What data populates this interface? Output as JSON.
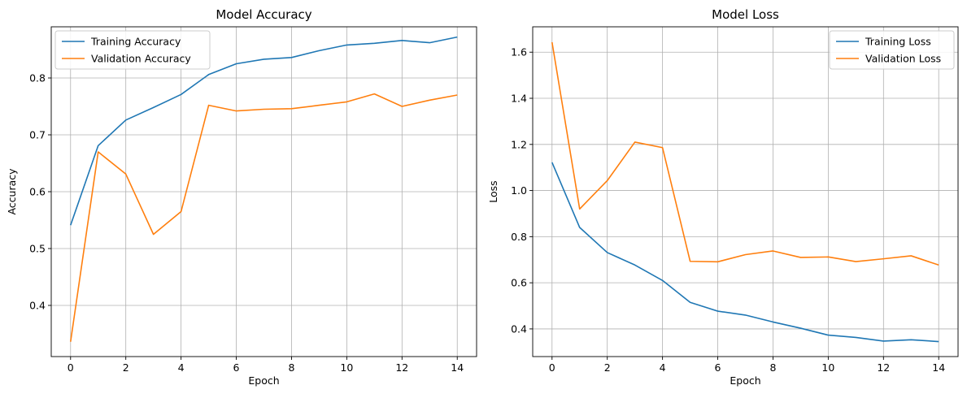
{
  "chart_data": [
    {
      "type": "line",
      "title": "Model Accuracy",
      "xlabel": "Epoch",
      "ylabel": "Accuracy",
      "x": [
        0,
        1,
        2,
        3,
        4,
        5,
        6,
        7,
        8,
        9,
        10,
        11,
        12,
        13,
        14
      ],
      "xlim": [
        -0.7,
        14.7
      ],
      "ylim": [
        0.31,
        0.89
      ],
      "xticks": [
        0,
        2,
        4,
        6,
        8,
        10,
        12,
        14
      ],
      "xtick_labels": [
        "0",
        "2",
        "4",
        "6",
        "8",
        "10",
        "12",
        "14"
      ],
      "yticks": [
        0.4,
        0.5,
        0.6,
        0.7,
        0.8
      ],
      "ytick_labels": [
        "0.4",
        "0.5",
        "0.6",
        "0.7",
        "0.8"
      ],
      "grid": true,
      "legend_position": "top-left",
      "series": [
        {
          "name": "Training Accuracy",
          "color": "#1f77b4",
          "values": [
            0.541,
            0.681,
            0.726,
            0.748,
            0.771,
            0.806,
            0.825,
            0.833,
            0.836,
            0.848,
            0.858,
            0.861,
            0.866,
            0.862,
            0.872
          ]
        },
        {
          "name": "Validation Accuracy",
          "color": "#ff7f0e",
          "values": [
            0.336,
            0.67,
            0.631,
            0.525,
            0.565,
            0.752,
            0.742,
            0.745,
            0.746,
            0.752,
            0.758,
            0.772,
            0.75,
            0.761,
            0.77
          ]
        }
      ]
    },
    {
      "type": "line",
      "title": "Model Loss",
      "xlabel": "Epoch",
      "ylabel": "Loss",
      "x": [
        0,
        1,
        2,
        3,
        4,
        5,
        6,
        7,
        8,
        9,
        10,
        11,
        12,
        13,
        14
      ],
      "xlim": [
        -0.7,
        14.7
      ],
      "ylim": [
        0.28,
        1.71
      ],
      "xticks": [
        0,
        2,
        4,
        6,
        8,
        10,
        12,
        14
      ],
      "xtick_labels": [
        "0",
        "2",
        "4",
        "6",
        "8",
        "10",
        "12",
        "14"
      ],
      "yticks": [
        0.4,
        0.6,
        0.8,
        1.0,
        1.2,
        1.4,
        1.6
      ],
      "ytick_labels": [
        "0.4",
        "0.6",
        "0.8",
        "1.0",
        "1.2",
        "1.4",
        "1.6"
      ],
      "grid": true,
      "legend_position": "top-right",
      "series": [
        {
          "name": "Training Loss",
          "color": "#1f77b4",
          "values": [
            1.122,
            0.84,
            0.731,
            0.677,
            0.61,
            0.515,
            0.477,
            0.46,
            0.43,
            0.403,
            0.373,
            0.363,
            0.347,
            0.353,
            0.345
          ]
        },
        {
          "name": "Validation Loss",
          "color": "#ff7f0e",
          "values": [
            1.643,
            0.92,
            1.043,
            1.21,
            1.186,
            0.693,
            0.691,
            0.722,
            0.738,
            0.71,
            0.712,
            0.692,
            0.704,
            0.717,
            0.677
          ]
        }
      ]
    }
  ]
}
